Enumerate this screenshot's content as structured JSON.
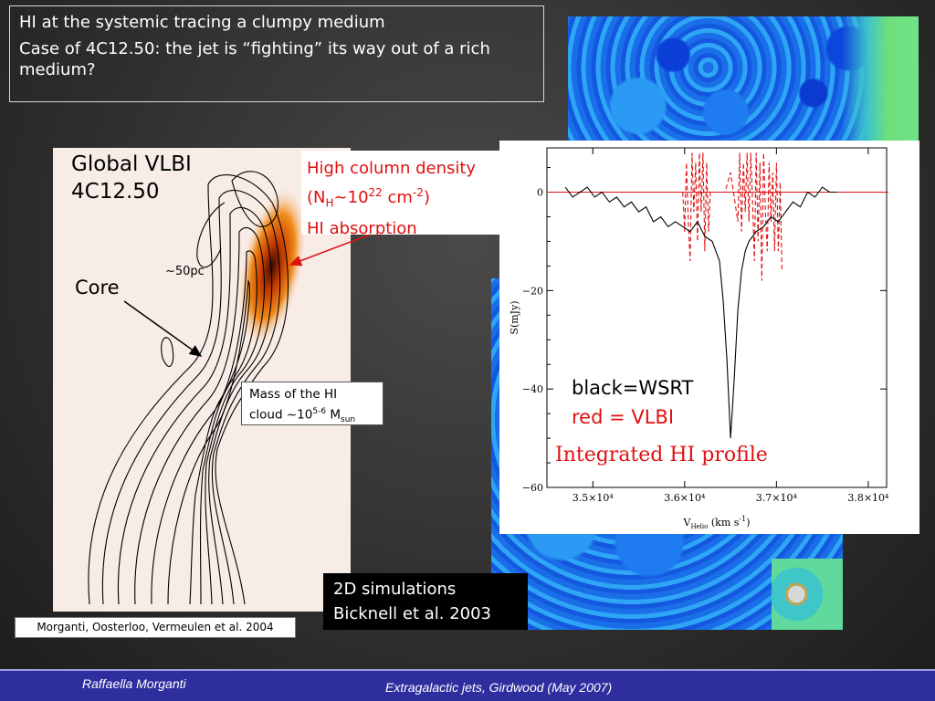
{
  "title": {
    "line1": "HI at the systemic tracing a clumpy medium",
    "line2": "Case of 4C12.50: the jet is “fighting” its way out of a rich medium?"
  },
  "vlbi": {
    "title_line1": "Global VLBI",
    "title_line2": "4C12.50",
    "core_label": "Core",
    "scale_label": "~50pc",
    "high_column": {
      "line1": "High column density",
      "nh_prefix": "(N",
      "nh_sub": "H",
      "nh_mid": "~10",
      "nh_sup": "22",
      "nh_unit": " cm",
      "nh_unit_sup": "-2",
      "nh_close": ")",
      "line3": "HI absorption"
    },
    "mass": {
      "line1": "Mass of the HI",
      "line2_prefix": "cloud ~10",
      "line2_sup": "5-6",
      "line2_m": " M",
      "line2_sub": "sun"
    },
    "credit": "Morganti, Oosterloo, Vermeulen et al. 2004"
  },
  "profile": {
    "legend_black": "black=WSRT",
    "legend_red": "red = VLBI",
    "caption": "Integrated HI profile",
    "ylabel": "S(mJy)",
    "xlabel": "V",
    "xlabel_sub": "Helio",
    "xlabel_unit": " (km s",
    "xlabel_unit_sup": "-1",
    "xlabel_close": ")"
  },
  "simulations": {
    "line1": "2D simulations",
    "line2": "Bicknell et al. 2003"
  },
  "footer": {
    "author": "Raffaella Morganti",
    "event": "Extragalactic jets, Girdwood (May 2007)"
  },
  "colors": {
    "footer_bg": "#2e2e9e",
    "red_text": "#e01010"
  },
  "chart_data": {
    "type": "line",
    "xlim": [
      34500,
      38200
    ],
    "ylim": [
      -60,
      9
    ],
    "x_ticks": [
      "3.5×10⁴",
      "3.6×10⁴",
      "3.7×10⁴",
      "3.8×10⁴"
    ],
    "x_tick_values": [
      35000,
      36000,
      37000,
      38000
    ],
    "y_ticks": [
      "0",
      "−20",
      "−40",
      "−60"
    ],
    "y_tick_values": [
      0,
      -20,
      -40,
      -60
    ],
    "hline": 0,
    "series": [
      {
        "name": "WSRT",
        "color": "#000000",
        "x": [
          34700,
          34780,
          34860,
          34940,
          35020,
          35100,
          35180,
          35260,
          35340,
          35420,
          35500,
          35580,
          35660,
          35740,
          35820,
          35900,
          35980,
          36060,
          36140,
          36220,
          36300,
          36380,
          36420,
          36460,
          36500,
          36540,
          36580,
          36620,
          36660,
          36700,
          36780,
          36860,
          36940,
          37020,
          37100,
          37180,
          37260,
          37340,
          37420,
          37500,
          37580,
          37660
        ],
        "y": [
          1,
          -1,
          0,
          1,
          -1,
          0,
          -2,
          -1,
          -3,
          -2,
          -4,
          -3,
          -6,
          -5,
          -7,
          -6,
          -7,
          -8,
          -6,
          -9,
          -10,
          -14,
          -22,
          -34,
          -50,
          -38,
          -24,
          -16,
          -12,
          -10,
          -8,
          -7,
          -5,
          -6,
          -4,
          -2,
          -3,
          0,
          -1,
          1,
          0,
          0
        ]
      },
      {
        "name": "VLBI",
        "color": "#e01010",
        "x": [
          35980,
          36000,
          36020,
          36040,
          36060,
          36080,
          36100,
          36120,
          36140,
          36160,
          36180,
          36200,
          36220,
          36240,
          36260,
          36280,
          36440,
          36500,
          36580,
          36600,
          36620,
          36640,
          36660,
          36680,
          36700,
          36720,
          36740,
          36760,
          36780,
          36800,
          36820,
          36840,
          36860,
          36880,
          36900,
          36920,
          36940,
          36960,
          36980,
          37000,
          37020,
          37040,
          37060
        ],
        "y": [
          0,
          -8,
          6,
          -6,
          -14,
          8,
          -4,
          6,
          -10,
          8,
          -4,
          8,
          -12,
          6,
          -8,
          0,
          0,
          4,
          -6,
          8,
          -8,
          6,
          -4,
          8,
          -6,
          8,
          -2,
          -14,
          8,
          -10,
          6,
          -18,
          8,
          -4,
          -12,
          6,
          -6,
          4,
          -12,
          6,
          -12,
          2,
          -16
        ]
      }
    ]
  }
}
